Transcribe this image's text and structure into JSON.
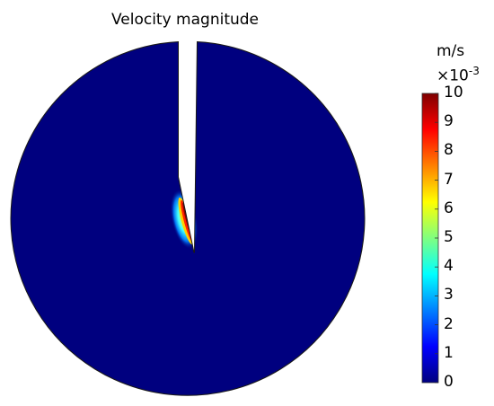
{
  "chart_data": {
    "type": "heatmap",
    "title": "Velocity magnitude",
    "colorbar": {
      "unit": "m/s",
      "scale_factor_base": "×10",
      "scale_factor_exponent": "-3",
      "range": [
        0,
        10
      ],
      "ticks": [
        "0",
        "1",
        "2",
        "3",
        "4",
        "5",
        "6",
        "7",
        "8",
        "9",
        "10"
      ],
      "colormap": "rainbow",
      "colors": [
        "#00007f",
        "#0000ff",
        "#0080ff",
        "#00ffff",
        "#80ff80",
        "#ffff00",
        "#ff8000",
        "#ff0000",
        "#7f0000"
      ]
    },
    "field": {
      "background_value": 0,
      "peak_value": 10,
      "peak_location": "tip of the slot at the disk center",
      "background_color": "#00007f"
    }
  }
}
